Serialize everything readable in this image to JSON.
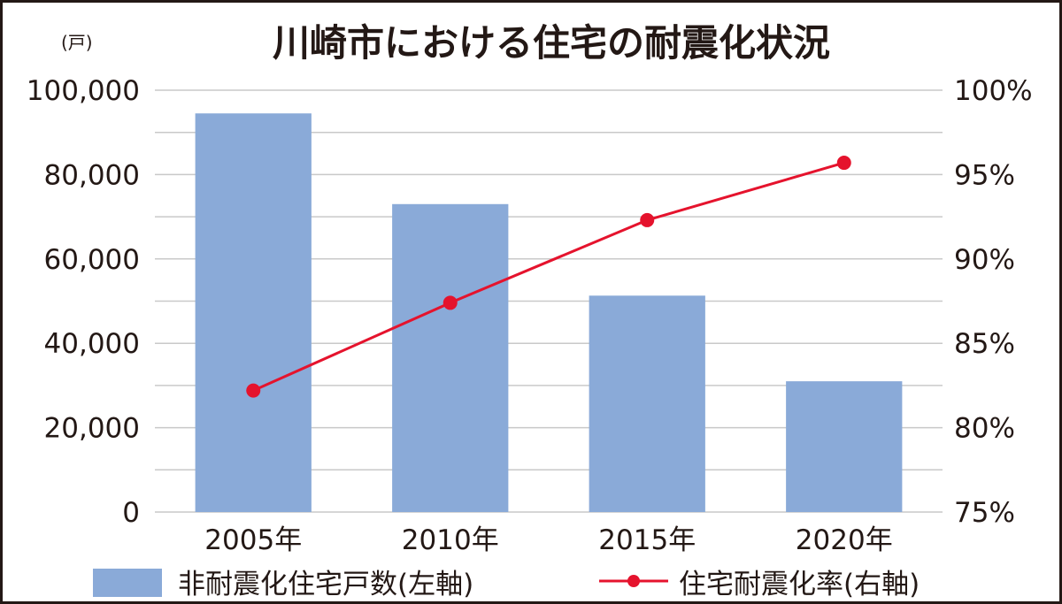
{
  "chart_data": {
    "type": "bar",
    "title": "川崎市における住宅の耐震化状況",
    "left_axis_unit": "(戸)",
    "categories": [
      "2005年",
      "2010年",
      "2015年",
      "2020年"
    ],
    "series": [
      {
        "name": "非耐震化住宅戸数(左軸)",
        "type": "bar",
        "axis": "left",
        "color": "#8aaad8",
        "values": [
          94500,
          73000,
          51300,
          31000
        ]
      },
      {
        "name": "住宅耐震化率(右軸)",
        "type": "line",
        "axis": "right",
        "color": "#e5132d",
        "values": [
          82.2,
          87.4,
          92.3,
          95.7
        ]
      }
    ],
    "y_left": {
      "min": 0,
      "max": 100000,
      "ticks": [
        0,
        20000,
        40000,
        60000,
        80000,
        100000
      ],
      "tick_labels": [
        "0",
        "20,000",
        "40,000",
        "60,000",
        "80,000",
        "100,000"
      ]
    },
    "y_right": {
      "min": 75,
      "max": 100,
      "ticks": [
        75,
        80,
        85,
        90,
        95,
        100
      ],
      "tick_labels": [
        "75%",
        "80%",
        "85%",
        "90%",
        "95%",
        "100%"
      ]
    },
    "grid": true,
    "legend_position": "bottom"
  }
}
